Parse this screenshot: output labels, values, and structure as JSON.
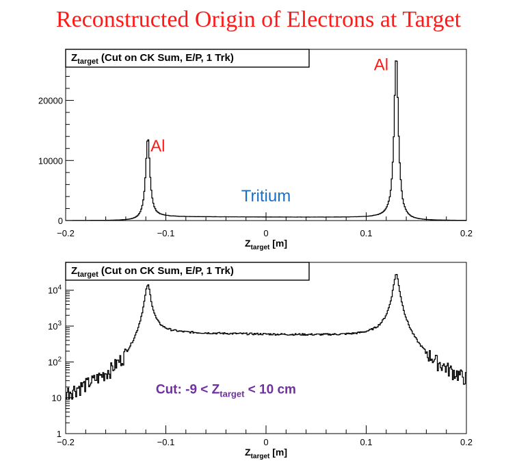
{
  "page": {
    "title": "Reconstructed Origin of Electrons at Target"
  },
  "chart_data": [
    {
      "type": "histogram",
      "title_main": "Z",
      "title_sub": "target",
      "title_rest": " (Cut on CK Sum, E/P, 1 Trk)",
      "xlabel_main": "Z",
      "xlabel_sub": "target",
      "xlabel_rest": " [m]",
      "xlim": [
        -0.2,
        0.2
      ],
      "ylim": [
        0,
        28500
      ],
      "yscale": "linear",
      "x_ticks": [
        -0.2,
        -0.1,
        0,
        0.1,
        0.2
      ],
      "x_tick_labels": [
        "−0.2",
        "−0.1",
        "0",
        "0.1",
        "0.2"
      ],
      "y_ticks": [
        0,
        10000,
        20000
      ],
      "y_tick_labels": [
        "0",
        "10000",
        "20000"
      ],
      "annotations": [
        {
          "text": "Al",
          "color": "#ff1a1a",
          "x": -0.108,
          "y": 11500
        },
        {
          "text": "Al",
          "color": "#ff1a1a",
          "x": 0.115,
          "y": 25000
        },
        {
          "text": "Tritium",
          "color": "#1a6fc4",
          "x": 0.0,
          "y": 3200
        }
      ],
      "peaks": [
        {
          "center": -0.118,
          "height": 13700,
          "width": 0.0025
        },
        {
          "center": 0.13,
          "height": 27800,
          "width": 0.0025
        }
      ],
      "plateau": 650
    },
    {
      "type": "histogram",
      "title_main": "Z",
      "title_sub": "target",
      "title_rest": " (Cut on CK Sum, E/P, 1 Trk)",
      "xlabel_main": "Z",
      "xlabel_sub": "target",
      "xlabel_rest": " [m]",
      "xlim": [
        -0.2,
        0.2
      ],
      "ylim": [
        1,
        60000
      ],
      "yscale": "log",
      "x_ticks": [
        -0.2,
        -0.1,
        0,
        0.1,
        0.2
      ],
      "x_tick_labels": [
        "−0.2",
        "−0.1",
        "0",
        "0.1",
        "0.2"
      ],
      "y_ticks": [
        1,
        10,
        100,
        1000,
        10000
      ],
      "y_tick_labels": [
        [
          "1",
          ""
        ],
        [
          "10",
          ""
        ],
        [
          "10",
          "2"
        ],
        [
          "10",
          "3"
        ],
        [
          "10",
          "4"
        ]
      ],
      "annotations": [
        {
          "text_parts": [
            "Cut:  -9 < Z",
            "target",
            " < 10 cm"
          ],
          "color": "#7030a0",
          "x": -0.04,
          "y": 13
        }
      ],
      "peaks": [
        {
          "center": -0.118,
          "height": 13700,
          "width": 0.0025
        },
        {
          "center": 0.13,
          "height": 27800,
          "width": 0.0025
        }
      ],
      "plateau": 650
    }
  ]
}
